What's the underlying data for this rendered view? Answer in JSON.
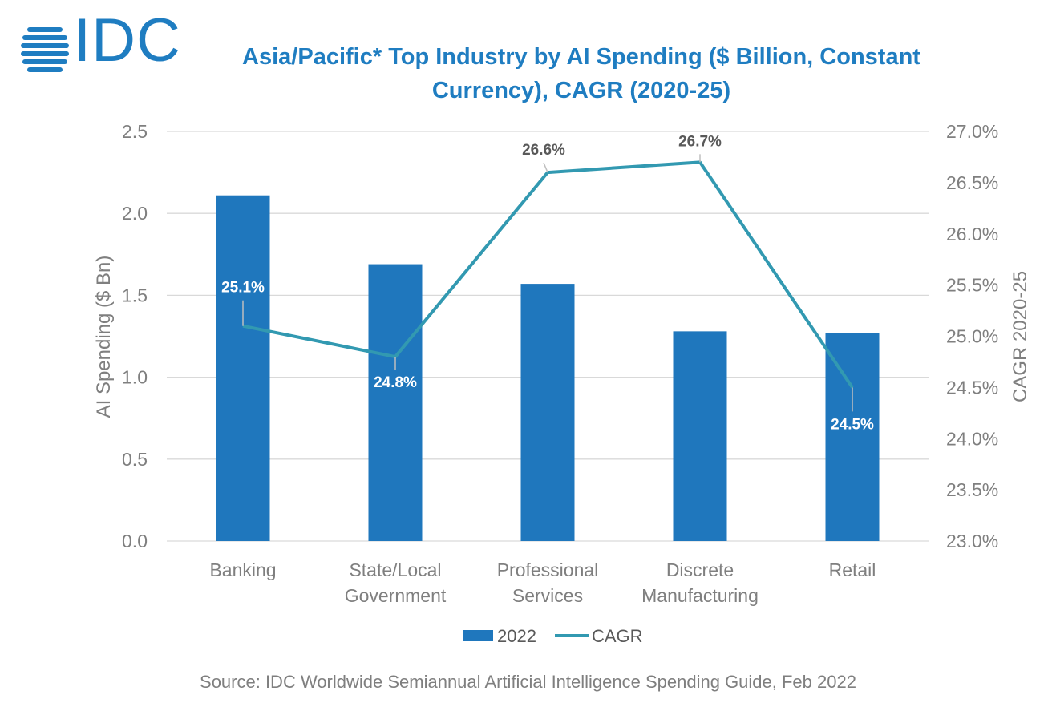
{
  "logo": {
    "text": "IDC"
  },
  "chart_data": {
    "type": "bar",
    "title": "Asia/Pacific* Top Industry by AI Spending ($ Billion, Constant Currency), CAGR (2020-25)",
    "categories": [
      [
        "Banking"
      ],
      [
        "State/Local",
        "Government"
      ],
      [
        "Professional",
        "Services"
      ],
      [
        "Discrete",
        "Manufacturing"
      ],
      [
        "Retail"
      ]
    ],
    "series": [
      {
        "name": "2022",
        "type": "bar",
        "axis": "left",
        "color": "#1f77bd",
        "values": [
          2.11,
          1.69,
          1.57,
          1.28,
          1.27
        ]
      },
      {
        "name": "CAGR",
        "type": "line",
        "axis": "right",
        "color": "#3299b1",
        "values": [
          25.1,
          24.8,
          26.6,
          26.7,
          24.5
        ],
        "labels": [
          "25.1%",
          "24.8%",
          "26.6%",
          "26.7%",
          "24.5%"
        ]
      }
    ],
    "ylabel": "AI Spending ($ Bn)",
    "y2label": "CAGR 2020-25",
    "ylim": [
      0,
      2.5
    ],
    "y2lim": [
      23.0,
      27.0
    ],
    "yticks": [
      "0.0",
      "0.5",
      "1.0",
      "1.5",
      "2.0",
      "2.5"
    ],
    "y2ticks": [
      "23.0%",
      "23.5%",
      "24.0%",
      "24.5%",
      "25.0%",
      "25.5%",
      "26.0%",
      "26.5%",
      "27.0%"
    ],
    "grid": true,
    "legend": "bottom"
  },
  "source": "Source:  IDC Worldwide Semiannual Artificial Intelligence Spending Guide, Feb 2022"
}
